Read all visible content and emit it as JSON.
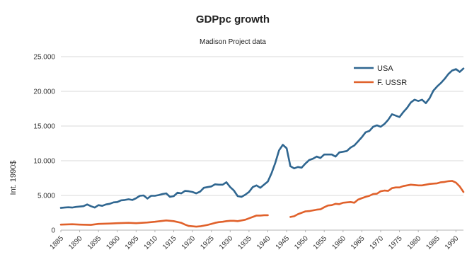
{
  "chart_data": {
    "type": "line",
    "title": "GDPpc growth",
    "subtitle": "Madison Project data",
    "ylabel": "Int. 1990$",
    "xlabel": "",
    "xlim": [
      1885,
      1992
    ],
    "ylim": [
      0,
      25000
    ],
    "yticks": [
      0,
      5000,
      10000,
      15000,
      20000,
      25000
    ],
    "ytick_labels": [
      "0",
      "5.000",
      "10.000",
      "15.000",
      "20.000",
      "25.000"
    ],
    "xticks": [
      1885,
      1890,
      1895,
      1900,
      1905,
      1910,
      1915,
      1920,
      1925,
      1930,
      1935,
      1940,
      1945,
      1950,
      1955,
      1960,
      1965,
      1970,
      1975,
      1980,
      1985,
      1990
    ],
    "grid": true,
    "legend_position": "top-right",
    "series": [
      {
        "name": "USA",
        "color": "#2f6690",
        "points": [
          [
            1885,
            3200
          ],
          [
            1886,
            3250
          ],
          [
            1887,
            3300
          ],
          [
            1888,
            3250
          ],
          [
            1889,
            3350
          ],
          [
            1890,
            3400
          ],
          [
            1891,
            3450
          ],
          [
            1892,
            3700
          ],
          [
            1893,
            3450
          ],
          [
            1894,
            3250
          ],
          [
            1895,
            3600
          ],
          [
            1896,
            3500
          ],
          [
            1897,
            3700
          ],
          [
            1898,
            3800
          ],
          [
            1899,
            4000
          ],
          [
            1900,
            4050
          ],
          [
            1901,
            4300
          ],
          [
            1902,
            4350
          ],
          [
            1903,
            4450
          ],
          [
            1904,
            4350
          ],
          [
            1905,
            4600
          ],
          [
            1906,
            4950
          ],
          [
            1907,
            5000
          ],
          [
            1908,
            4550
          ],
          [
            1909,
            4950
          ],
          [
            1910,
            4950
          ],
          [
            1911,
            5050
          ],
          [
            1912,
            5200
          ],
          [
            1913,
            5300
          ],
          [
            1914,
            4800
          ],
          [
            1915,
            4900
          ],
          [
            1916,
            5400
          ],
          [
            1917,
            5300
          ],
          [
            1918,
            5650
          ],
          [
            1919,
            5600
          ],
          [
            1920,
            5500
          ],
          [
            1921,
            5300
          ],
          [
            1922,
            5550
          ],
          [
            1923,
            6100
          ],
          [
            1924,
            6200
          ],
          [
            1925,
            6300
          ],
          [
            1926,
            6600
          ],
          [
            1927,
            6550
          ],
          [
            1928,
            6550
          ],
          [
            1929,
            6900
          ],
          [
            1930,
            6200
          ],
          [
            1931,
            5700
          ],
          [
            1932,
            4900
          ],
          [
            1933,
            4800
          ],
          [
            1934,
            5100
          ],
          [
            1935,
            5500
          ],
          [
            1936,
            6200
          ],
          [
            1937,
            6450
          ],
          [
            1938,
            6100
          ],
          [
            1939,
            6550
          ],
          [
            1940,
            7000
          ],
          [
            1941,
            8200
          ],
          [
            1942,
            9700
          ],
          [
            1943,
            11500
          ],
          [
            1944,
            12300
          ],
          [
            1945,
            11800
          ],
          [
            1946,
            9200
          ],
          [
            1947,
            8900
          ],
          [
            1948,
            9100
          ],
          [
            1949,
            9000
          ],
          [
            1950,
            9600
          ],
          [
            1951,
            10100
          ],
          [
            1952,
            10300
          ],
          [
            1953,
            10600
          ],
          [
            1954,
            10400
          ],
          [
            1955,
            10900
          ],
          [
            1956,
            10900
          ],
          [
            1957,
            10900
          ],
          [
            1958,
            10600
          ],
          [
            1959,
            11200
          ],
          [
            1960,
            11300
          ],
          [
            1961,
            11400
          ],
          [
            1962,
            11900
          ],
          [
            1963,
            12200
          ],
          [
            1964,
            12800
          ],
          [
            1965,
            13400
          ],
          [
            1966,
            14100
          ],
          [
            1967,
            14300
          ],
          [
            1968,
            14900
          ],
          [
            1969,
            15100
          ],
          [
            1970,
            14900
          ],
          [
            1971,
            15300
          ],
          [
            1972,
            15900
          ],
          [
            1973,
            16700
          ],
          [
            1974,
            16500
          ],
          [
            1975,
            16300
          ],
          [
            1976,
            17000
          ],
          [
            1977,
            17600
          ],
          [
            1978,
            18400
          ],
          [
            1979,
            18800
          ],
          [
            1980,
            18600
          ],
          [
            1981,
            18800
          ],
          [
            1982,
            18300
          ],
          [
            1983,
            19000
          ],
          [
            1984,
            20100
          ],
          [
            1985,
            20700
          ],
          [
            1986,
            21200
          ],
          [
            1987,
            21800
          ],
          [
            1988,
            22500
          ],
          [
            1989,
            23000
          ],
          [
            1990,
            23200
          ],
          [
            1991,
            22800
          ],
          [
            1992,
            23300
          ]
        ]
      },
      {
        "name": "F. USSR",
        "color": "#e0612b",
        "points": [
          [
            1885,
            800
          ],
          [
            1888,
            850
          ],
          [
            1890,
            800
          ],
          [
            1893,
            750
          ],
          [
            1895,
            900
          ],
          [
            1898,
            950
          ],
          [
            1900,
            1000
          ],
          [
            1903,
            1050
          ],
          [
            1905,
            1000
          ],
          [
            1908,
            1100
          ],
          [
            1910,
            1200
          ],
          [
            1913,
            1400
          ],
          [
            1915,
            1300
          ],
          [
            1917,
            1050
          ],
          [
            1918,
            800
          ],
          [
            1919,
            600
          ],
          [
            1920,
            550
          ],
          [
            1921,
            500
          ],
          [
            1922,
            550
          ],
          [
            1923,
            650
          ],
          [
            1924,
            750
          ],
          [
            1925,
            900
          ],
          [
            1926,
            1050
          ],
          [
            1927,
            1150
          ],
          [
            1928,
            1200
          ],
          [
            1929,
            1300
          ],
          [
            1930,
            1350
          ],
          [
            1931,
            1350
          ],
          [
            1932,
            1300
          ],
          [
            1933,
            1400
          ],
          [
            1934,
            1500
          ],
          [
            1935,
            1700
          ],
          [
            1936,
            1900
          ],
          [
            1937,
            2100
          ],
          [
            1938,
            2100
          ],
          [
            1939,
            2150
          ],
          [
            1940,
            2150
          ],
          null,
          [
            1946,
            1900
          ],
          [
            1947,
            2000
          ],
          [
            1948,
            2300
          ],
          [
            1949,
            2500
          ],
          [
            1950,
            2700
          ],
          [
            1951,
            2750
          ],
          [
            1952,
            2850
          ],
          [
            1953,
            2950
          ],
          [
            1954,
            3000
          ],
          [
            1955,
            3300
          ],
          [
            1956,
            3550
          ],
          [
            1957,
            3600
          ],
          [
            1958,
            3800
          ],
          [
            1959,
            3750
          ],
          [
            1960,
            3950
          ],
          [
            1961,
            4000
          ],
          [
            1962,
            4050
          ],
          [
            1963,
            3950
          ],
          [
            1964,
            4400
          ],
          [
            1965,
            4600
          ],
          [
            1966,
            4800
          ],
          [
            1967,
            4950
          ],
          [
            1968,
            5200
          ],
          [
            1969,
            5250
          ],
          [
            1970,
            5600
          ],
          [
            1971,
            5700
          ],
          [
            1972,
            5650
          ],
          [
            1973,
            6050
          ],
          [
            1974,
            6150
          ],
          [
            1975,
            6150
          ],
          [
            1976,
            6350
          ],
          [
            1977,
            6450
          ],
          [
            1978,
            6550
          ],
          [
            1979,
            6500
          ],
          [
            1980,
            6450
          ],
          [
            1981,
            6450
          ],
          [
            1982,
            6550
          ],
          [
            1983,
            6650
          ],
          [
            1984,
            6700
          ],
          [
            1985,
            6750
          ],
          [
            1986,
            6900
          ],
          [
            1987,
            6950
          ],
          [
            1988,
            7050
          ],
          [
            1989,
            7100
          ],
          [
            1990,
            6850
          ],
          [
            1991,
            6300
          ],
          [
            1992,
            5500
          ]
        ]
      }
    ]
  }
}
